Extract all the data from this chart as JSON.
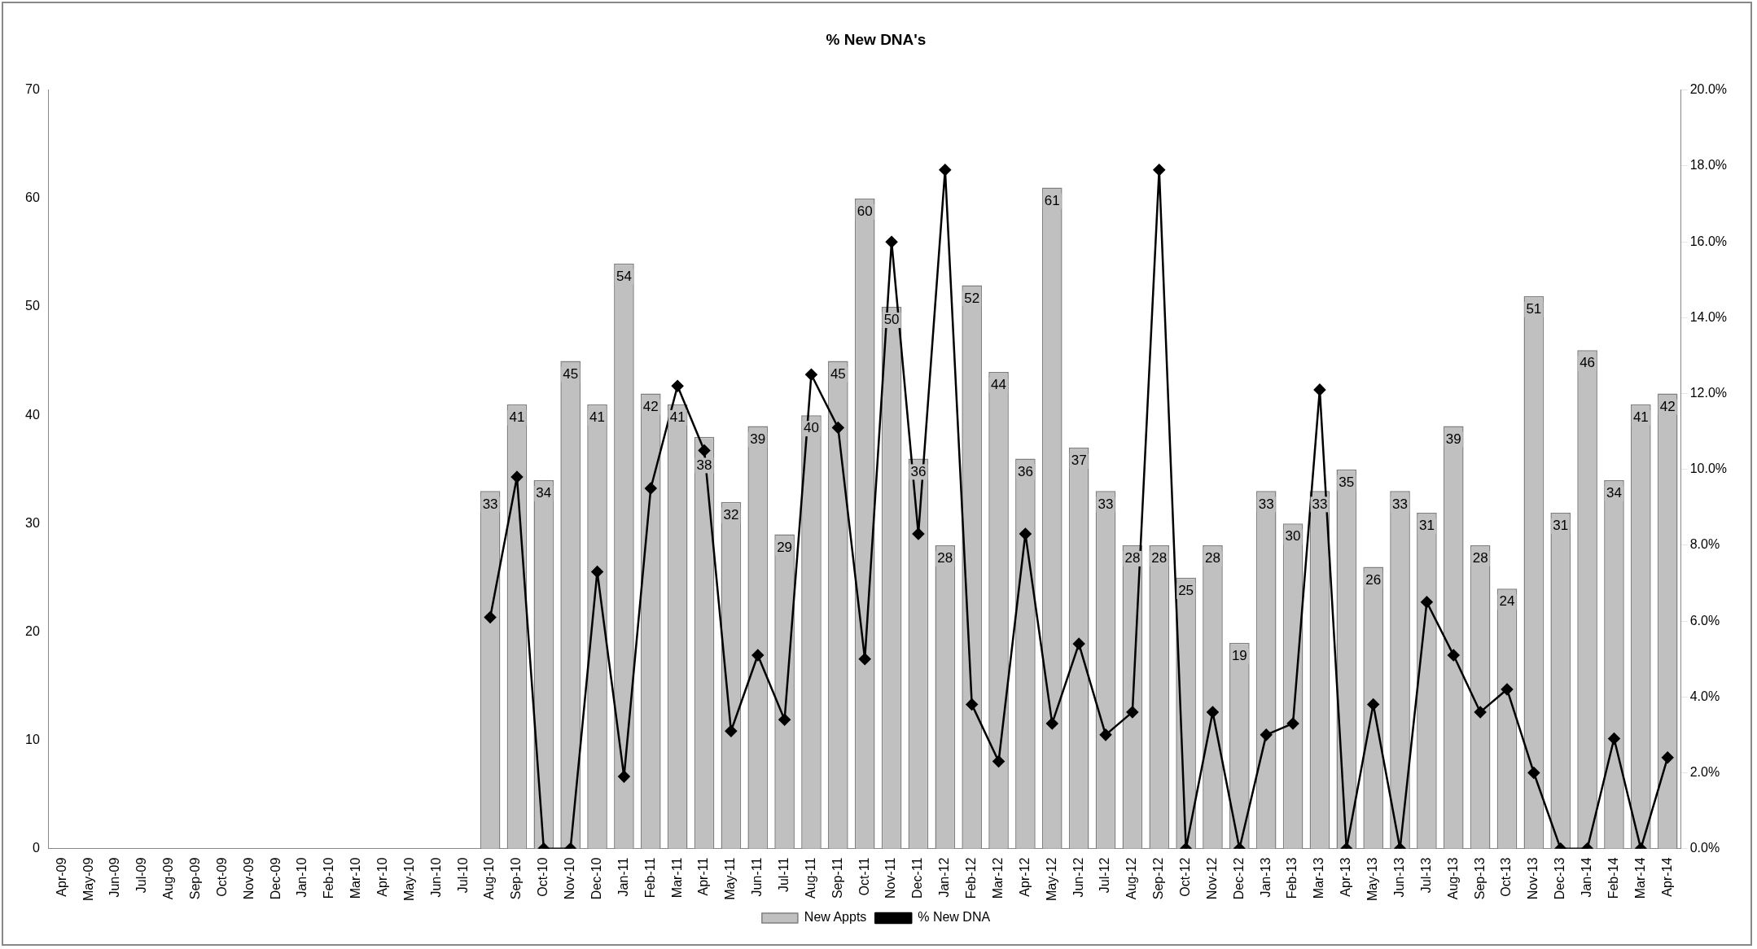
{
  "chart_data": {
    "type": "bar",
    "title": "% New DNA's",
    "categories": [
      "Apr-09",
      "May-09",
      "Jun-09",
      "Jul-09",
      "Aug-09",
      "Sep-09",
      "Oct-09",
      "Nov-09",
      "Dec-09",
      "Jan-10",
      "Feb-10",
      "Mar-10",
      "Apr-10",
      "May-10",
      "Jun-10",
      "Jul-10",
      "Aug-10",
      "Sep-10",
      "Oct-10",
      "Nov-10",
      "Dec-10",
      "Jan-11",
      "Feb-11",
      "Mar-11",
      "Apr-11",
      "May-11",
      "Jun-11",
      "Jul-11",
      "Aug-11",
      "Sep-11",
      "Oct-11",
      "Nov-11",
      "Dec-11",
      "Jan-12",
      "Feb-12",
      "Mar-12",
      "Apr-12",
      "May-12",
      "Jun-12",
      "Jul-12",
      "Aug-12",
      "Sep-12",
      "Oct-12",
      "Nov-12",
      "Dec-12",
      "Jan-13",
      "Feb-13",
      "Mar-13",
      "Apr-13",
      "May-13",
      "Jun-13",
      "Jul-13",
      "Aug-13",
      "Sep-13",
      "Oct-13",
      "Nov-13",
      "Dec-13",
      "Jan-14",
      "Feb-14",
      "Mar-14",
      "Apr-14"
    ],
    "series": [
      {
        "name": "New Appts",
        "color": "#c0c0c0",
        "data_labels": true,
        "values": [
          null,
          null,
          null,
          null,
          null,
          null,
          null,
          null,
          null,
          null,
          null,
          null,
          null,
          null,
          null,
          null,
          33,
          41,
          34,
          45,
          41,
          54,
          42,
          41,
          38,
          32,
          39,
          29,
          40,
          45,
          60,
          50,
          36,
          28,
          52,
          44,
          36,
          61,
          37,
          33,
          28,
          28,
          25,
          28,
          19,
          33,
          30,
          33,
          35,
          26,
          33,
          31,
          39,
          28,
          24,
          51,
          31,
          46,
          34,
          41,
          42
        ]
      },
      {
        "name": "% New DNA",
        "type": "line",
        "axis": "y2",
        "color": "#000000",
        "marker": "diamond",
        "values": [
          null,
          null,
          null,
          null,
          null,
          null,
          null,
          null,
          null,
          null,
          null,
          null,
          null,
          null,
          null,
          null,
          6.1,
          9.8,
          0,
          0,
          7.3,
          1.9,
          9.5,
          12.2,
          10.5,
          3.1,
          5.1,
          3.4,
          12.5,
          11.1,
          5.0,
          16.0,
          8.3,
          17.9,
          3.8,
          2.3,
          8.3,
          3.3,
          5.4,
          3.0,
          3.6,
          17.9,
          0,
          3.6,
          0,
          3.0,
          3.3,
          12.1,
          0,
          3.8,
          0,
          6.5,
          5.1,
          3.6,
          4.2,
          2.0,
          0,
          0,
          2.9,
          0,
          2.4
        ]
      }
    ],
    "ylim": [
      0,
      70
    ],
    "yticks": [
      0,
      10,
      20,
      30,
      40,
      50,
      60,
      70
    ],
    "y2lim": [
      0,
      20
    ],
    "y2ticks": [
      {
        "value": 0,
        "label": "0.0%"
      },
      {
        "value": 2,
        "label": "2.0%"
      },
      {
        "value": 4,
        "label": "4.0%"
      },
      {
        "value": 6,
        "label": "6.0%"
      },
      {
        "value": 8,
        "label": "8.0%"
      },
      {
        "value": 10,
        "label": "10.0%"
      },
      {
        "value": 12,
        "label": "12.0%"
      },
      {
        "value": 14,
        "label": "14.0%"
      },
      {
        "value": 16,
        "label": "16.0%"
      },
      {
        "value": 18,
        "label": "18.0%"
      },
      {
        "value": 20,
        "label": "20.0%"
      }
    ],
    "grid": false,
    "legend": "bottom"
  }
}
